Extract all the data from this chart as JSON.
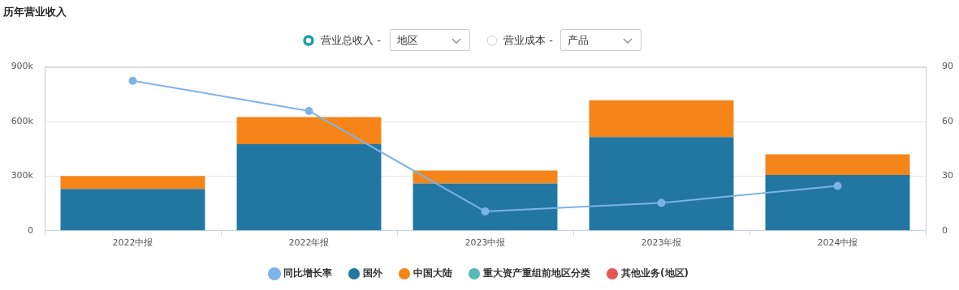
{
  "chart_data": {
    "type": "bar",
    "title": "历年营业收入",
    "stacked": true,
    "categories": [
      "2022中报",
      "2022年报",
      "2023中报",
      "2023年报",
      "2024中报"
    ],
    "series": [
      {
        "name": "国外",
        "color": "#2277a2",
        "values": [
          229000,
          475000,
          259000,
          514000,
          306000
        ]
      },
      {
        "name": "中国大陆",
        "color": "#f58518",
        "values": [
          72000,
          149000,
          72000,
          203000,
          114000
        ]
      },
      {
        "name": "重大资产重组前地区分类",
        "color": "#54b9b5",
        "values": [
          null,
          null,
          null,
          null,
          null
        ]
      },
      {
        "name": "其他业务(地区)",
        "color": "#e45756",
        "values": [
          null,
          null,
          null,
          null,
          null
        ]
      },
      {
        "name": "同比增长率",
        "type": "line",
        "axis": "y2",
        "color": "#7eb3e8",
        "values": [
          82.4,
          65.8,
          10.6,
          15.3,
          24.6
        ]
      }
    ],
    "ylim": [
      0,
      900000
    ],
    "yticks": [
      {
        "value": 0,
        "label": "0"
      },
      {
        "value": 300000,
        "label": "300k"
      },
      {
        "value": 600000,
        "label": "600k"
      },
      {
        "value": 900000,
        "label": "900k"
      }
    ],
    "y2lim": [
      0,
      90
    ],
    "y2ticks": [
      0,
      30,
      60,
      90
    ],
    "grid": "y",
    "legend": "bottom",
    "marker": "circle",
    "annotations": [
      "营业总收入 -",
      "地区",
      "营业成本 -",
      "产品"
    ]
  }
}
